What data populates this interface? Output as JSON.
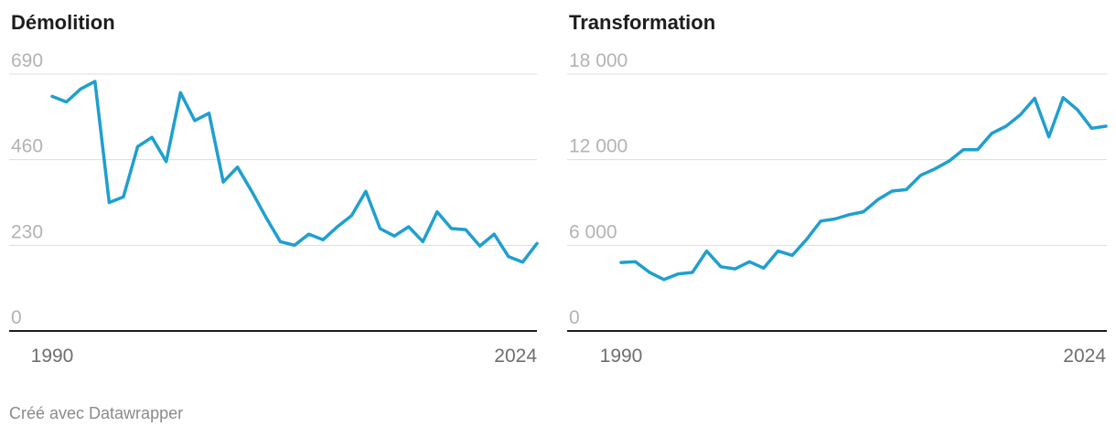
{
  "footer": "Créé avec Datawrapper",
  "colors": {
    "line": "#1f9fcf",
    "grid": "#dddddd",
    "baseline": "#1d1d1d"
  },
  "chart_data": [
    {
      "type": "line",
      "title": "Démolition",
      "xlabel": "",
      "ylabel": "",
      "ylim": [
        0,
        690
      ],
      "yticks": [
        0,
        230,
        460,
        690
      ],
      "ytick_labels": [
        "0",
        "230",
        "460",
        "690"
      ],
      "xtick_labels": [
        "1990",
        "2024"
      ],
      "grid": true,
      "x": [
        1990,
        1991,
        1992,
        1993,
        1994,
        1995,
        1996,
        1997,
        1998,
        1999,
        2000,
        2001,
        2002,
        2003,
        2004,
        2005,
        2006,
        2007,
        2008,
        2009,
        2010,
        2011,
        2012,
        2013,
        2014,
        2015,
        2016,
        2017,
        2018,
        2019,
        2020,
        2021,
        2022,
        2023,
        2024
      ],
      "series": [
        {
          "values": [
            630,
            615,
            650,
            670,
            345,
            360,
            495,
            520,
            455,
            640,
            565,
            585,
            400,
            440,
            375,
            305,
            240,
            230,
            260,
            245,
            280,
            310,
            375,
            275,
            255,
            280,
            240,
            320,
            275,
            272,
            228,
            260,
            200,
            185,
            235
          ]
        }
      ]
    },
    {
      "type": "line",
      "title": "Transformation",
      "xlabel": "",
      "ylabel": "",
      "ylim": [
        0,
        18000
      ],
      "yticks": [
        0,
        6000,
        12000,
        18000
      ],
      "ytick_labels": [
        "0",
        "6 000",
        "12 000",
        "18 000"
      ],
      "xtick_labels": [
        "1990",
        "2024"
      ],
      "grid": true,
      "x": [
        1990,
        1991,
        1992,
        1993,
        1994,
        1995,
        1996,
        1997,
        1998,
        1999,
        2000,
        2001,
        2002,
        2003,
        2004,
        2005,
        2006,
        2007,
        2008,
        2009,
        2010,
        2011,
        2012,
        2013,
        2014,
        2015,
        2016,
        2017,
        2018,
        2019,
        2020,
        2021,
        2022,
        2023,
        2024
      ],
      "series": [
        {
          "values": [
            4800,
            4850,
            4100,
            3600,
            4000,
            4100,
            5600,
            4500,
            4350,
            4850,
            4400,
            5600,
            5300,
            6400,
            7700,
            7850,
            8150,
            8350,
            9200,
            9800,
            9900,
            10900,
            11350,
            11900,
            12700,
            12700,
            13850,
            14350,
            15150,
            16300,
            13600,
            16350,
            15500,
            14200,
            14350
          ]
        }
      ]
    }
  ]
}
